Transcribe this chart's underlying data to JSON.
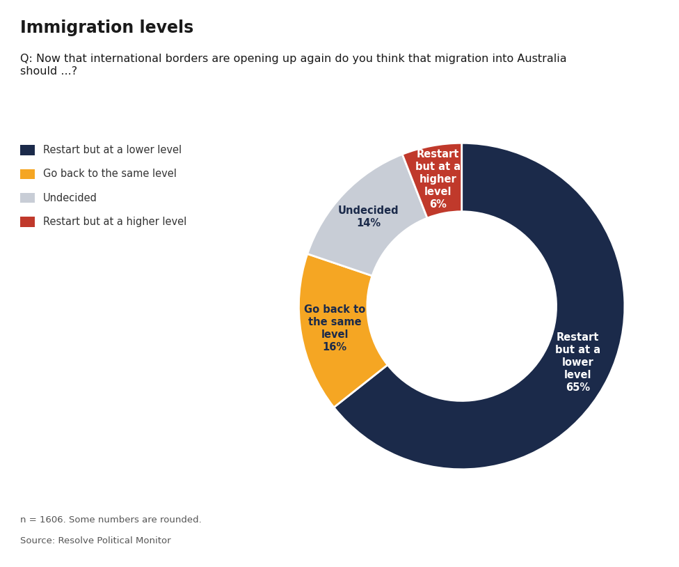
{
  "title": "Immigration levels",
  "question": "Q: Now that international borders are opening up again do you think that migration into Australia\nshould ...?",
  "footnote": "n = 1606. Some numbers are rounded.",
  "source": "Source: Resolve Political Monitor",
  "slices": [
    {
      "label": "Restart but at a lower level",
      "value": 65,
      "color": "#1b2a4a"
    },
    {
      "label": "Go back to the same level",
      "value": 16,
      "color": "#f5a623"
    },
    {
      "label": "Undecided",
      "value": 14,
      "color": "#c8cdd6"
    },
    {
      "label": "Restart but at a higher level",
      "value": 6,
      "color": "#c0392b"
    }
  ],
  "legend_labels": [
    "Restart but at a lower level",
    "Go back to the same level",
    "Undecided",
    "Restart but at a higher level"
  ],
  "legend_colors": [
    "#1b2a4a",
    "#f5a623",
    "#c8cdd6",
    "#c0392b"
  ],
  "slice_label_texts": {
    "Restart but at a lower level": "Restart\nbut at a\nlower\nlevel\n65%",
    "Go back to the same level": "Go back to\nthe same\nlevel\n16%",
    "Undecided": "Undecided\n14%",
    "Restart but at a higher level": "Restart\nbut at a\nhigher\nlevel\n6%"
  },
  "slice_label_colors": {
    "Restart but at a lower level": "#ffffff",
    "Go back to the same level": "#1b2a4a",
    "Undecided": "#1b2a4a",
    "Restart but at a higher level": "#ffffff"
  },
  "donut_width": 0.42,
  "startangle": 90,
  "background_color": "#ffffff",
  "title_fontsize": 17,
  "question_fontsize": 11.5,
  "label_fontsize": 10.5,
  "legend_fontsize": 10.5,
  "footnote_fontsize": 9.5
}
